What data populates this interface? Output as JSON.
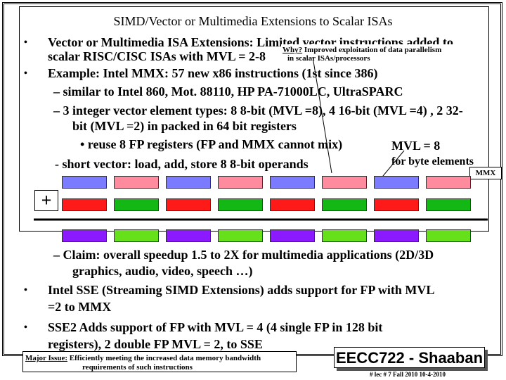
{
  "title": "SIMD/Vector or Multimedia Extensions to Scalar ISAs",
  "bullets": {
    "b1_line1": "Vector or Multimedia ISA Extensions: Limited vector instructions added to",
    "b1_line2": "scalar RISC/CISC ISAs with MVL = 2-8",
    "b2": "Example: Intel MMX: 57 new x86 instructions (1st since 386)",
    "sub1": "– similar to Intel 860, Mot. 88110, HP PA-71000LC, UltraSPARC",
    "sub2_line1": "– 3 integer vector element types: 8 8-bit (MVL =8), 4 16-bit (MVL =4) , 2 32-",
    "sub2_line2": "bit (MVL =2) in packed in 64 bit registers",
    "sub3": "• reuse 8 FP registers (FP and MMX cannot mix)",
    "short_vector": "- short vector: load, add, store 8 8-bit operands",
    "claim_line1": "– Claim: overall speedup 1.5 to 2X for multimedia applications (2D/3D",
    "claim_line2": "graphics, audio, video, speech …)",
    "sse_line1": "Intel SSE (Streaming SIMD Extensions) adds support for FP with MVL",
    "sse_line2": "=2 to MMX",
    "sse2_line1": "SSE2  Adds support of FP with MVL = 4 (4 single FP in 128 bit",
    "sse2_line2": "registers), 2 double FP MVL = 2, to SSE"
  },
  "bullet_glyph": "•",
  "why_note": {
    "label": "Why?",
    "line1": " Improved exploitation of data parallelism",
    "line2": "in scalar ISAs/processors"
  },
  "mvl_note": {
    "line1": "MVL = 8",
    "line2": "for byte elements"
  },
  "mmx_label": "MMX",
  "plus_sign": "+",
  "footer": {
    "issue_label": "Major Issue:",
    "issue_line1": " Efficiently meeting the increased data memory bandwidth",
    "issue_line2": "requirements of such instructions",
    "course": "EECC722 - Shaaban",
    "meta": "#  lec # 7    Fall 2010   10-4-2010"
  },
  "register_rows": [
    [
      "#7b7bff",
      "#ff8c9e",
      "#7b7bff",
      "#ff8c9e",
      "#7b7bff",
      "#ff8c9e",
      "#7b7bff",
      "#ff8c9e"
    ],
    [
      "#ff1a1a",
      "#14b814",
      "#ff1a1a",
      "#14b814",
      "#ff1a1a",
      "#14b814",
      "#ff1a1a",
      "#14b814"
    ],
    [
      "#8c1aff",
      "#66e01a",
      "#8c1aff",
      "#66e01a",
      "#8c1aff",
      "#66e01a",
      "#8c1aff",
      "#66e01a"
    ]
  ]
}
